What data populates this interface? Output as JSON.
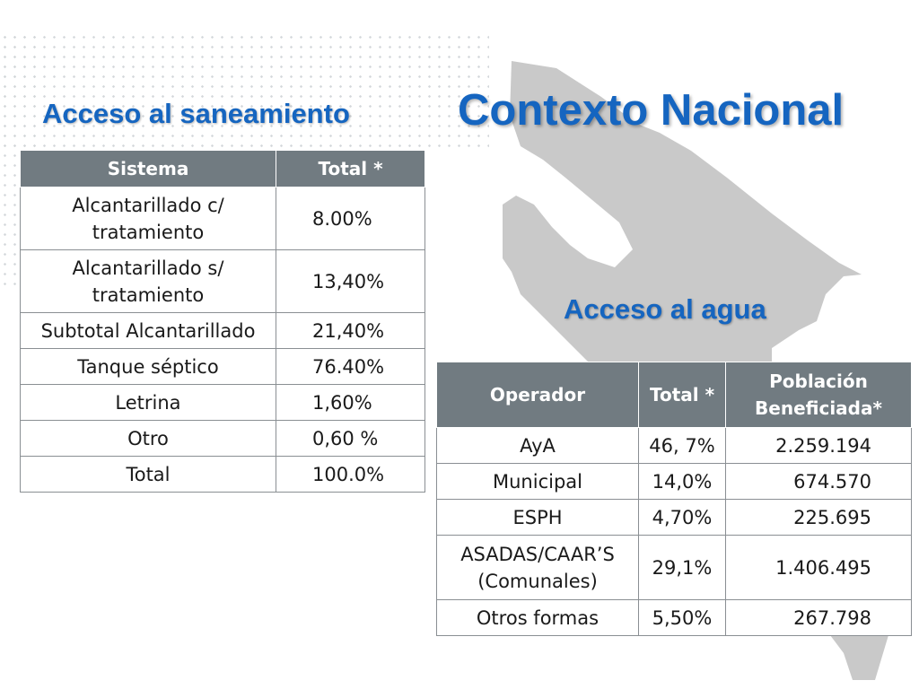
{
  "title": "Contexto Nacional",
  "sanitation": {
    "heading": "Acceso al saneamiento",
    "columns": [
      "Sistema",
      "Total *"
    ],
    "rows": [
      {
        "sistema": "Alcantarillado c/ tratamiento",
        "total": "8.00%"
      },
      {
        "sistema": "Alcantarillado s/ tratamiento",
        "total": "13,40%"
      },
      {
        "sistema": "Subtotal Alcantarillado",
        "total": "21,40%"
      },
      {
        "sistema": "Tanque séptico",
        "total": "76.40%"
      },
      {
        "sistema": "Letrina",
        "total": "1,60%"
      },
      {
        "sistema": "Otro",
        "total": "0,60 %"
      },
      {
        "sistema": "Total",
        "total": "100.0%"
      }
    ]
  },
  "water": {
    "heading": "Acceso al agua",
    "columns": [
      "Operador",
      "Total *",
      "Población Beneficiada*"
    ],
    "rows": [
      {
        "operador": "AyA",
        "total": "46, 7%",
        "poblacion": "2.259.194"
      },
      {
        "operador": "Municipal",
        "total": "14,0%",
        "poblacion": "674.570"
      },
      {
        "operador": "ESPH",
        "total": "4,70%",
        "poblacion": "225.695"
      },
      {
        "operador": "ASADAS/CAAR’S (Comunales)",
        "total": "29,1%",
        "poblacion": "1.406.495"
      },
      {
        "operador": "Otros formas",
        "total": "5,50%",
        "poblacion": "267.798"
      }
    ]
  },
  "colors": {
    "heading_blue": "#1565c0",
    "header_gray": "#717b81",
    "map_gray": "#c9c9c9"
  }
}
